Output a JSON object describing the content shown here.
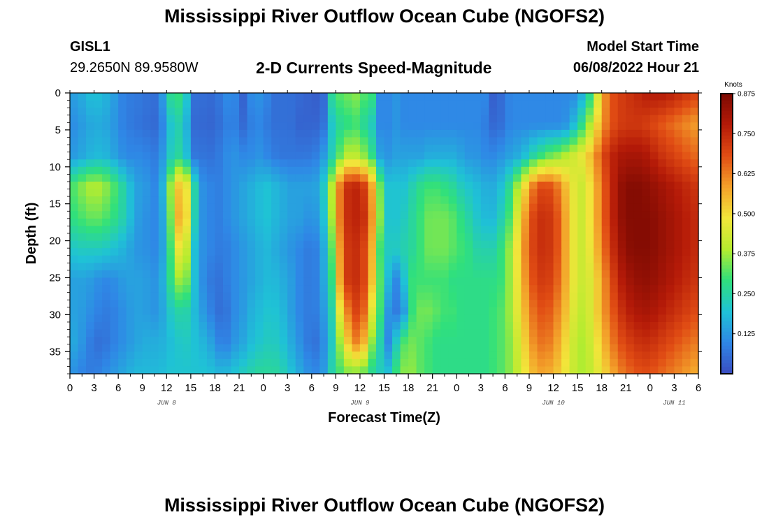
{
  "header": {
    "title": "Mississippi River Outflow Ocean Cube (NGOFS2)",
    "station": "GISL1",
    "coords": "29.2650N  89.9580W",
    "subtitle": "2-D Currents Speed-Magnitude",
    "model_start_label": "Model Start Time",
    "model_start_value": "06/08/2022 Hour 21"
  },
  "footer": {
    "title": "Mississippi River Outflow Ocean Cube (NGOFS2)"
  },
  "chart_data": {
    "type": "heatmap",
    "title": "2-D Currents Speed-Magnitude",
    "xlabel": "Forecast Time(Z)",
    "ylabel": "Depth (ft)",
    "x_range_hours": [
      0,
      78
    ],
    "x_ticks": [
      "0",
      "3",
      "6",
      "9",
      "12",
      "15",
      "18",
      "21",
      "0",
      "3",
      "6",
      "9",
      "12",
      "15",
      "18",
      "21",
      "0",
      "3",
      "6",
      "9",
      "12",
      "15",
      "18",
      "21",
      "0",
      "3",
      "6"
    ],
    "day_labels": [
      {
        "text": "JUN 8",
        "hour": 12
      },
      {
        "text": "JUN 9",
        "hour": 36
      },
      {
        "text": "JUN 10",
        "hour": 60
      },
      {
        "text": "JUN 11",
        "hour": 75
      }
    ],
    "y_range": [
      0,
      38
    ],
    "y_ticks": [
      "0",
      "5",
      "10",
      "15",
      "20",
      "25",
      "30",
      "35"
    ],
    "y_tick_values": [
      0,
      5,
      10,
      15,
      20,
      25,
      30,
      35
    ],
    "colorbar": {
      "unit": "Knots",
      "range": [
        0,
        0.875
      ],
      "labels": [
        "0.875",
        "0.750",
        "0.625",
        "0.500",
        "0.375",
        "0.250",
        "0.125"
      ],
      "label_values": [
        0.875,
        0.75,
        0.625,
        0.5,
        0.375,
        0.25,
        0.125
      ],
      "stops": [
        "#3a4cc0",
        "#2f87e6",
        "#1fc2d6",
        "#30e07c",
        "#b5ec2f",
        "#f2e53a",
        "#f3a12a",
        "#e14d14",
        "#b41a08",
        "#7d0a02"
      ]
    },
    "speed_knots": [
      [
        0.14,
        0.14,
        0.18,
        0.2,
        0.18,
        0.16,
        0.1,
        0.08,
        0.08,
        0.07,
        0.06,
        0.06,
        0.26,
        0.3,
        0.28,
        0.06,
        0.06,
        0.05,
        0.06,
        0.1,
        0.12,
        0.02,
        0.1,
        0.12,
        0.1,
        0.06,
        0.06,
        0.06,
        0.05,
        0.04,
        0.03,
        0.03,
        0.26,
        0.32,
        0.34,
        0.36,
        0.32,
        0.3,
        0.1,
        0.1,
        0.12,
        0.1,
        0.1,
        0.1,
        0.1,
        0.1,
        0.1,
        0.1,
        0.1,
        0.1,
        0.1,
        0.1,
        0.02,
        0.06,
        0.1,
        0.1,
        0.1,
        0.1,
        0.1,
        0.1,
        0.1,
        0.1,
        0.1,
        0.18,
        0.3,
        0.52,
        0.66,
        0.7,
        0.72,
        0.74,
        0.76,
        0.78,
        0.78,
        0.78,
        0.76,
        0.74,
        0.72,
        0.7
      ],
      [
        0.1,
        0.12,
        0.14,
        0.16,
        0.15,
        0.14,
        0.1,
        0.08,
        0.07,
        0.06,
        0.05,
        0.05,
        0.18,
        0.24,
        0.22,
        0.05,
        0.05,
        0.04,
        0.05,
        0.08,
        0.1,
        0.04,
        0.08,
        0.1,
        0.08,
        0.06,
        0.06,
        0.06,
        0.04,
        0.04,
        0.04,
        0.05,
        0.2,
        0.26,
        0.28,
        0.3,
        0.26,
        0.22,
        0.1,
        0.1,
        0.12,
        0.1,
        0.1,
        0.1,
        0.1,
        0.1,
        0.1,
        0.1,
        0.1,
        0.1,
        0.1,
        0.08,
        0.04,
        0.06,
        0.1,
        0.1,
        0.1,
        0.1,
        0.1,
        0.1,
        0.1,
        0.12,
        0.2,
        0.3,
        0.42,
        0.56,
        0.66,
        0.7,
        0.72,
        0.72,
        0.72,
        0.7,
        0.68,
        0.66,
        0.64,
        0.62,
        0.6,
        0.58
      ],
      [
        0.12,
        0.14,
        0.16,
        0.18,
        0.18,
        0.16,
        0.12,
        0.1,
        0.1,
        0.1,
        0.08,
        0.08,
        0.2,
        0.26,
        0.24,
        0.07,
        0.07,
        0.06,
        0.07,
        0.1,
        0.12,
        0.1,
        0.1,
        0.12,
        0.1,
        0.08,
        0.07,
        0.07,
        0.07,
        0.07,
        0.08,
        0.12,
        0.22,
        0.32,
        0.4,
        0.4,
        0.36,
        0.28,
        0.14,
        0.12,
        0.14,
        0.14,
        0.14,
        0.14,
        0.16,
        0.16,
        0.16,
        0.16,
        0.14,
        0.12,
        0.12,
        0.1,
        0.1,
        0.12,
        0.14,
        0.16,
        0.2,
        0.26,
        0.3,
        0.34,
        0.36,
        0.4,
        0.44,
        0.48,
        0.56,
        0.66,
        0.74,
        0.78,
        0.8,
        0.8,
        0.8,
        0.78,
        0.74,
        0.72,
        0.7,
        0.68,
        0.66,
        0.64
      ],
      [
        0.3,
        0.34,
        0.38,
        0.4,
        0.38,
        0.34,
        0.28,
        0.22,
        0.14,
        0.14,
        0.1,
        0.1,
        0.3,
        0.52,
        0.56,
        0.3,
        0.12,
        0.1,
        0.08,
        0.1,
        0.12,
        0.14,
        0.16,
        0.18,
        0.2,
        0.18,
        0.16,
        0.14,
        0.14,
        0.14,
        0.14,
        0.2,
        0.38,
        0.62,
        0.74,
        0.76,
        0.72,
        0.58,
        0.34,
        0.2,
        0.2,
        0.2,
        0.24,
        0.28,
        0.3,
        0.3,
        0.28,
        0.26,
        0.22,
        0.2,
        0.18,
        0.16,
        0.16,
        0.2,
        0.28,
        0.4,
        0.54,
        0.66,
        0.7,
        0.68,
        0.62,
        0.52,
        0.44,
        0.42,
        0.52,
        0.62,
        0.72,
        0.8,
        0.86,
        0.86,
        0.86,
        0.84,
        0.82,
        0.8,
        0.78,
        0.76,
        0.74,
        0.72
      ],
      [
        0.28,
        0.3,
        0.32,
        0.34,
        0.32,
        0.3,
        0.26,
        0.22,
        0.14,
        0.12,
        0.1,
        0.1,
        0.24,
        0.54,
        0.6,
        0.28,
        0.12,
        0.1,
        0.08,
        0.1,
        0.12,
        0.14,
        0.16,
        0.18,
        0.2,
        0.18,
        0.16,
        0.14,
        0.14,
        0.12,
        0.12,
        0.18,
        0.36,
        0.62,
        0.74,
        0.76,
        0.74,
        0.6,
        0.36,
        0.2,
        0.2,
        0.22,
        0.26,
        0.3,
        0.34,
        0.34,
        0.34,
        0.32,
        0.28,
        0.24,
        0.2,
        0.18,
        0.18,
        0.24,
        0.32,
        0.48,
        0.62,
        0.72,
        0.74,
        0.72,
        0.66,
        0.54,
        0.44,
        0.42,
        0.52,
        0.62,
        0.72,
        0.8,
        0.86,
        0.86,
        0.86,
        0.86,
        0.84,
        0.82,
        0.8,
        0.78,
        0.76,
        0.74
      ],
      [
        0.2,
        0.22,
        0.22,
        0.22,
        0.22,
        0.2,
        0.18,
        0.16,
        0.12,
        0.12,
        0.1,
        0.1,
        0.22,
        0.46,
        0.5,
        0.22,
        0.12,
        0.1,
        0.08,
        0.08,
        0.1,
        0.12,
        0.14,
        0.16,
        0.18,
        0.16,
        0.14,
        0.12,
        0.1,
        0.08,
        0.08,
        0.14,
        0.3,
        0.58,
        0.72,
        0.74,
        0.7,
        0.56,
        0.3,
        0.22,
        0.22,
        0.24,
        0.26,
        0.3,
        0.34,
        0.34,
        0.34,
        0.32,
        0.3,
        0.28,
        0.24,
        0.24,
        0.24,
        0.3,
        0.38,
        0.52,
        0.64,
        0.72,
        0.74,
        0.72,
        0.66,
        0.54,
        0.44,
        0.42,
        0.5,
        0.6,
        0.7,
        0.78,
        0.84,
        0.86,
        0.86,
        0.86,
        0.84,
        0.82,
        0.8,
        0.78,
        0.76,
        0.74
      ],
      [
        0.14,
        0.14,
        0.14,
        0.12,
        0.1,
        0.1,
        0.12,
        0.14,
        0.14,
        0.14,
        0.12,
        0.12,
        0.24,
        0.36,
        0.4,
        0.22,
        0.12,
        0.08,
        0.06,
        0.08,
        0.1,
        0.12,
        0.14,
        0.16,
        0.18,
        0.18,
        0.16,
        0.14,
        0.1,
        0.08,
        0.08,
        0.14,
        0.26,
        0.56,
        0.72,
        0.74,
        0.7,
        0.54,
        0.32,
        0.18,
        0.1,
        0.2,
        0.3,
        0.3,
        0.3,
        0.3,
        0.3,
        0.28,
        0.28,
        0.28,
        0.28,
        0.28,
        0.28,
        0.3,
        0.38,
        0.5,
        0.62,
        0.7,
        0.72,
        0.7,
        0.64,
        0.54,
        0.44,
        0.42,
        0.46,
        0.56,
        0.66,
        0.74,
        0.8,
        0.82,
        0.84,
        0.84,
        0.82,
        0.8,
        0.78,
        0.76,
        0.74,
        0.72
      ],
      [
        0.14,
        0.14,
        0.12,
        0.1,
        0.08,
        0.08,
        0.1,
        0.12,
        0.14,
        0.14,
        0.12,
        0.12,
        0.2,
        0.24,
        0.26,
        0.2,
        0.14,
        0.1,
        0.06,
        0.06,
        0.1,
        0.12,
        0.16,
        0.18,
        0.2,
        0.2,
        0.18,
        0.14,
        0.1,
        0.08,
        0.08,
        0.12,
        0.22,
        0.46,
        0.62,
        0.7,
        0.66,
        0.46,
        0.3,
        0.12,
        0.08,
        0.14,
        0.3,
        0.34,
        0.34,
        0.32,
        0.3,
        0.3,
        0.28,
        0.28,
        0.28,
        0.28,
        0.3,
        0.32,
        0.38,
        0.48,
        0.58,
        0.66,
        0.68,
        0.66,
        0.6,
        0.52,
        0.42,
        0.4,
        0.46,
        0.56,
        0.64,
        0.7,
        0.76,
        0.78,
        0.8,
        0.8,
        0.78,
        0.76,
        0.74,
        0.72,
        0.7,
        0.68
      ],
      [
        0.16,
        0.14,
        0.1,
        0.06,
        0.06,
        0.08,
        0.1,
        0.12,
        0.14,
        0.16,
        0.16,
        0.16,
        0.18,
        0.2,
        0.22,
        0.2,
        0.18,
        0.16,
        0.1,
        0.08,
        0.12,
        0.14,
        0.18,
        0.2,
        0.22,
        0.22,
        0.2,
        0.16,
        0.12,
        0.08,
        0.06,
        0.1,
        0.2,
        0.36,
        0.52,
        0.62,
        0.56,
        0.36,
        0.24,
        0.1,
        0.22,
        0.32,
        0.34,
        0.32,
        0.3,
        0.28,
        0.28,
        0.28,
        0.28,
        0.28,
        0.28,
        0.28,
        0.3,
        0.32,
        0.36,
        0.44,
        0.54,
        0.62,
        0.64,
        0.62,
        0.56,
        0.48,
        0.4,
        0.38,
        0.44,
        0.52,
        0.6,
        0.66,
        0.7,
        0.72,
        0.74,
        0.74,
        0.72,
        0.7,
        0.68,
        0.66,
        0.64,
        0.62
      ],
      [
        0.12,
        0.1,
        0.08,
        0.08,
        0.1,
        0.12,
        0.14,
        0.16,
        0.18,
        0.18,
        0.18,
        0.18,
        0.2,
        0.2,
        0.2,
        0.2,
        0.2,
        0.2,
        0.18,
        0.18,
        0.2,
        0.22,
        0.24,
        0.26,
        0.26,
        0.26,
        0.24,
        0.2,
        0.16,
        0.12,
        0.1,
        0.12,
        0.24,
        0.3,
        0.34,
        0.34,
        0.32,
        0.26,
        0.22,
        0.2,
        0.3,
        0.36,
        0.36,
        0.32,
        0.3,
        0.28,
        0.28,
        0.28,
        0.28,
        0.28,
        0.28,
        0.28,
        0.3,
        0.32,
        0.36,
        0.42,
        0.5,
        0.56,
        0.58,
        0.56,
        0.52,
        0.46,
        0.4,
        0.38,
        0.42,
        0.48,
        0.54,
        0.6,
        0.64,
        0.66,
        0.68,
        0.68,
        0.66,
        0.64,
        0.62,
        0.6,
        0.58,
        0.56
      ]
    ]
  }
}
